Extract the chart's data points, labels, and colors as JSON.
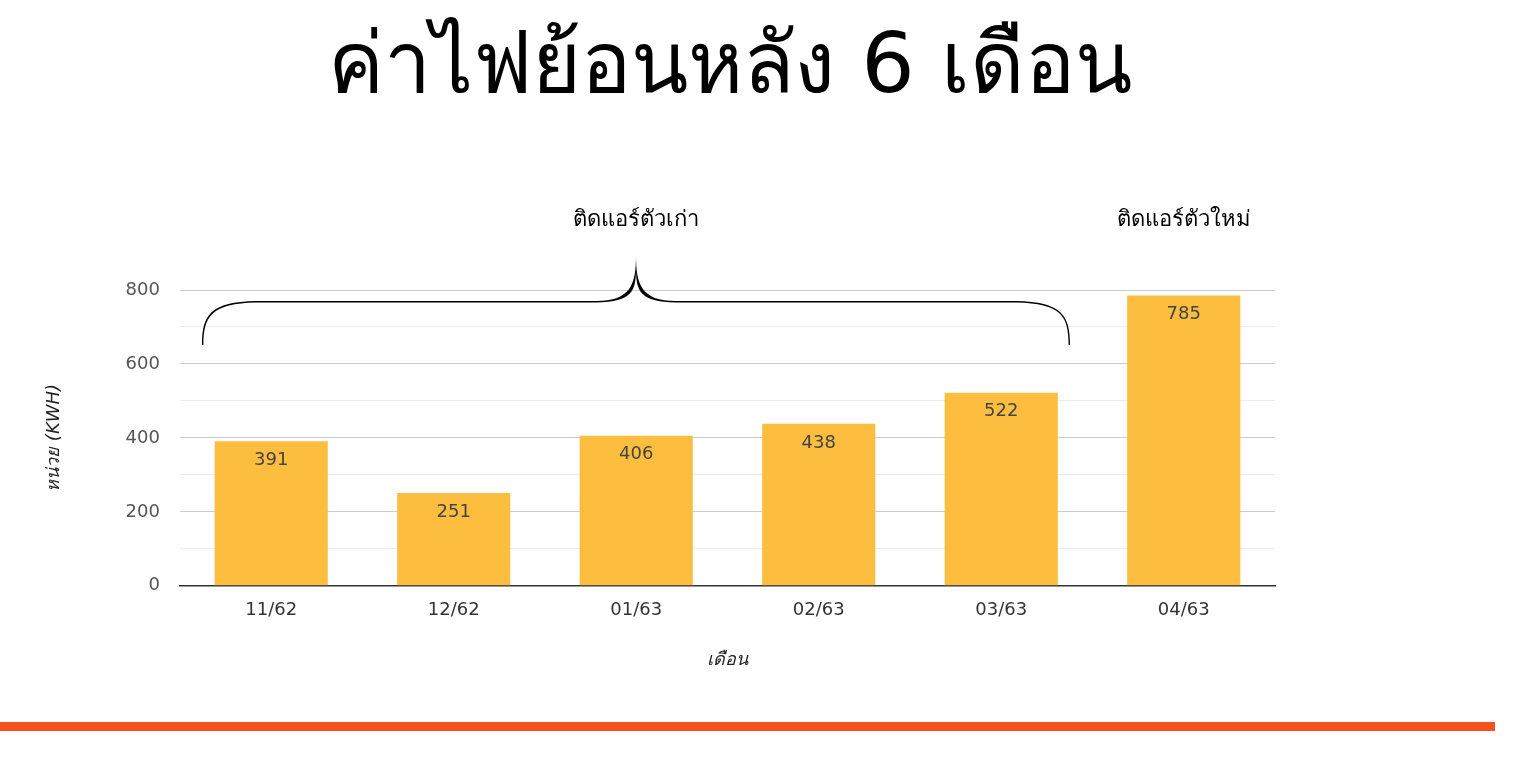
{
  "chart_data": {
    "type": "bar",
    "title": "ค่าไฟย้อนหลัง 6 เดือน",
    "xlabel": "เดือน",
    "ylabel": "หน่วย (KWH)",
    "categories": [
      "11/62",
      "12/62",
      "01/63",
      "02/63",
      "03/63",
      "04/63"
    ],
    "values": [
      391,
      251,
      406,
      438,
      522,
      785
    ],
    "color": "#fdbd3f",
    "data_labels": true,
    "ylim": [
      0,
      800
    ],
    "yticks": [
      0,
      {
        "value": 100,
        "label": null
      },
      200,
      {
        "value": 300,
        "label": null
      },
      400,
      {
        "value": 500,
        "label": null
      },
      600,
      {
        "value": 700,
        "label": null
      },
      800
    ],
    "grid": "y",
    "legend": false,
    "annotations": [
      "ติดแอร์ตัวเก่า",
      "ติดแอร์ตัวใหม่"
    ]
  }
}
